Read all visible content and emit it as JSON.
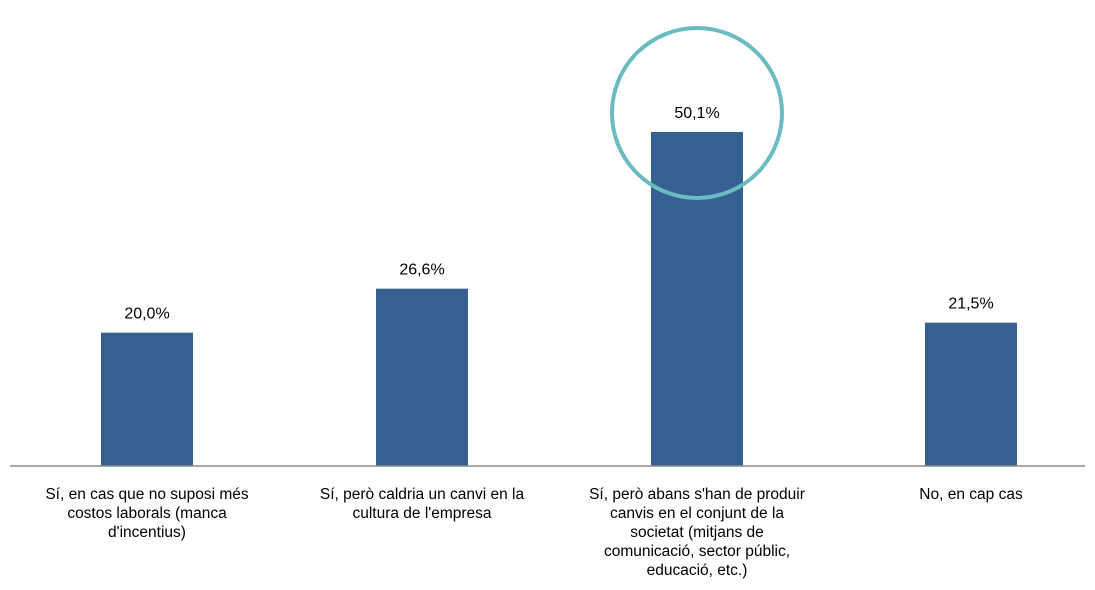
{
  "chart_data": {
    "type": "bar",
    "title": "",
    "xlabel": "",
    "ylabel": "",
    "ylim": [
      0,
      57
    ],
    "grid": false,
    "legend": "none",
    "categories": [
      "Sí, en cas que no suposi més costos laborals (manca d'incentius)",
      "Sí, però caldria un canvi en la cultura de l'empresa",
      "Sí, però abans s'han de produir canvis en el conjunt de la societat (mitjans de comunicació, sector públic, educació, etc.)",
      "No, en cap cas"
    ],
    "category_lines": [
      [
        "Sí, en cas que no suposi més",
        "costos laborals (manca",
        "d'incentius)"
      ],
      [
        "Sí, però caldria un canvi en la",
        "cultura de l'empresa"
      ],
      [
        "Sí, però abans s'han de produir",
        "canvis en el conjunt de la",
        "societat (mitjans de",
        "comunicació, sector públic,",
        "educació, etc.)"
      ],
      [
        "No, en cap cas"
      ]
    ],
    "values": [
      20.0,
      26.6,
      50.1,
      21.5
    ],
    "data_labels": [
      "20,0%",
      "26,6%",
      "50,1%",
      "21,5%"
    ],
    "highlighted_category_index": 2,
    "colors": {
      "bar": "#366092",
      "highlight_circle": "#6bbcc2",
      "axis": "#8c8c8c",
      "text": "#000000"
    }
  }
}
